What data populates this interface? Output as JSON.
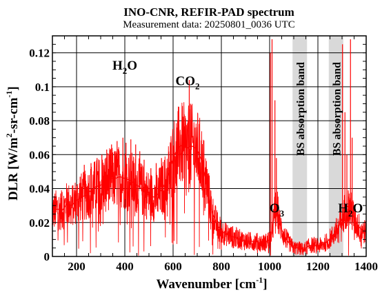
{
  "chart_data": {
    "type": "line",
    "title": "INO-CNR, REFIR-PAD spectrum",
    "subtitle": "Measurement data: 20250801_0036 UTC",
    "xlabel": "Wavenumber [cm",
    "xlabel_sup": "-1",
    "xlabel_end": "]",
    "ylabel": "DLR [W/m",
    "ylabel_sup1": "2",
    "ylabel_mid": "-sr-cm",
    "ylabel_sup2": "-1",
    "ylabel_end": "]",
    "xlim": [
      100,
      1400
    ],
    "ylim": [
      0,
      0.13
    ],
    "x_ticks": [
      200,
      400,
      600,
      800,
      1000,
      1200,
      1400
    ],
    "x_tick_labels": [
      "200",
      "400",
      "600",
      "800",
      "1000",
      "1200",
      "1400"
    ],
    "y_ticks": [
      0,
      0.02,
      0.04,
      0.06,
      0.08,
      0.1,
      0.12
    ],
    "y_tick_labels": [
      "0",
      "0.02",
      "0.04",
      "0.06",
      "0.08",
      "0.1",
      "0.12"
    ],
    "grid": true,
    "series": [
      {
        "color": "#ff0000",
        "points": [
          [
            100,
            0.026
          ],
          [
            120,
            0.028
          ],
          [
            140,
            0.027
          ],
          [
            160,
            0.031
          ],
          [
            180,
            0.03
          ],
          [
            200,
            0.033
          ],
          [
            220,
            0.035
          ],
          [
            240,
            0.036
          ],
          [
            260,
            0.039
          ],
          [
            280,
            0.041
          ],
          [
            300,
            0.042
          ],
          [
            320,
            0.044
          ],
          [
            340,
            0.046
          ],
          [
            360,
            0.046
          ],
          [
            380,
            0.047
          ],
          [
            400,
            0.046
          ],
          [
            420,
            0.045
          ],
          [
            440,
            0.043
          ],
          [
            460,
            0.041
          ],
          [
            480,
            0.038
          ],
          [
            500,
            0.036
          ],
          [
            520,
            0.035
          ],
          [
            540,
            0.037
          ],
          [
            560,
            0.041
          ],
          [
            580,
            0.048
          ],
          [
            600,
            0.058
          ],
          [
            620,
            0.064
          ],
          [
            640,
            0.066
          ],
          [
            660,
            0.064
          ],
          [
            680,
            0.065
          ],
          [
            700,
            0.063
          ],
          [
            720,
            0.056
          ],
          [
            740,
            0.042
          ],
          [
            760,
            0.027
          ],
          [
            780,
            0.019
          ],
          [
            800,
            0.015
          ],
          [
            820,
            0.013
          ],
          [
            840,
            0.012
          ],
          [
            860,
            0.011
          ],
          [
            880,
            0.01
          ],
          [
            900,
            0.009
          ],
          [
            920,
            0.009
          ],
          [
            940,
            0.009
          ],
          [
            960,
            0.008
          ],
          [
            980,
            0.008
          ],
          [
            1000,
            0.01
          ],
          [
            1010,
            0.014
          ],
          [
            1020,
            0.025
          ],
          [
            1030,
            0.03
          ],
          [
            1040,
            0.02
          ],
          [
            1060,
            0.012
          ],
          [
            1080,
            0.008
          ],
          [
            1100,
            0.005
          ],
          [
            1120,
            0.005
          ],
          [
            1140,
            0.004
          ],
          [
            1160,
            0.006
          ],
          [
            1180,
            0.007
          ],
          [
            1200,
            0.006
          ],
          [
            1220,
            0.007
          ],
          [
            1240,
            0.009
          ],
          [
            1260,
            0.012
          ],
          [
            1280,
            0.016
          ],
          [
            1300,
            0.022
          ],
          [
            1320,
            0.03
          ],
          [
            1340,
            0.026
          ],
          [
            1360,
            0.019
          ],
          [
            1380,
            0.016
          ],
          [
            1400,
            0.014
          ]
        ],
        "spikes": [
          [
            140,
            0.038
          ],
          [
            162,
            0.04
          ],
          [
            185,
            0.042
          ],
          [
            215,
            0.047
          ],
          [
            232,
            0.054
          ],
          [
            260,
            0.055
          ],
          [
            285,
            0.058
          ],
          [
            305,
            0.06
          ],
          [
            325,
            0.063
          ],
          [
            345,
            0.066
          ],
          [
            368,
            0.068
          ],
          [
            392,
            0.07
          ],
          [
            405,
            0.067
          ],
          [
            425,
            0.069
          ],
          [
            445,
            0.066
          ],
          [
            462,
            0.062
          ],
          [
            480,
            0.057
          ],
          [
            508,
            0.052
          ],
          [
            530,
            0.055
          ],
          [
            552,
            0.058
          ],
          [
            590,
            0.061
          ],
          [
            667,
            0.104
          ],
          [
            672,
            0.09
          ],
          [
            1003,
            0.12
          ],
          [
            1010,
            0.128
          ],
          [
            1022,
            0.092
          ],
          [
            1028,
            0.058
          ],
          [
            1302,
            0.125
          ],
          [
            1312,
            0.085
          ],
          [
            1320,
            0.06
          ],
          [
            1335,
            0.128
          ],
          [
            1342,
            0.07
          ]
        ]
      }
    ],
    "shaded_bands": [
      {
        "xmin": 1095,
        "xmax": 1155,
        "label": "BS absorption band",
        "color": "#d9d9d9"
      },
      {
        "xmin": 1245,
        "xmax": 1305,
        "label": "BS absorption band",
        "color": "#d9d9d9"
      }
    ],
    "annotations": [
      {
        "base": "H",
        "sub": "2",
        "tail": "O",
        "x": 400,
        "y": 0.11
      },
      {
        "base": "CO",
        "sub": "2",
        "tail": "",
        "x": 660,
        "y": 0.101
      },
      {
        "base": "O",
        "sub": "3",
        "tail": "",
        "x": 1030,
        "y": 0.026
      },
      {
        "base": "H",
        "sub": "2",
        "tail": "O",
        "x": 1335,
        "y": 0.026
      }
    ]
  }
}
